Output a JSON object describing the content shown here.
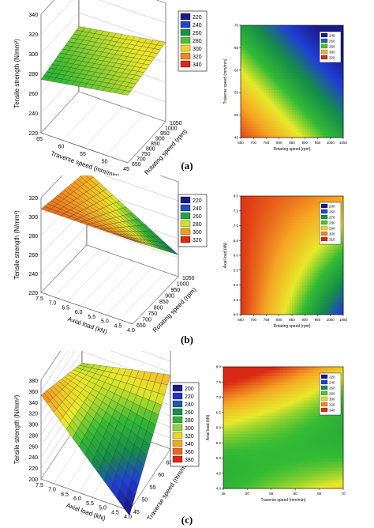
{
  "panels": [
    {
      "label": "(a)",
      "surface": {
        "xlabel": "Traverse speed (mm/min)",
        "ylabel": "Rotating speed (rpm)",
        "zlabel": "Tensile strength (N/mm²)",
        "x_ticks": [
          "65",
          "60",
          "55",
          "50",
          "45"
        ],
        "y_ticks": [
          "650",
          "700",
          "750",
          "800",
          "850",
          "900",
          "950",
          "1000",
          "1050"
        ],
        "z_ticks": [
          "220",
          "240",
          "260",
          "280",
          "300",
          "320",
          "340"
        ],
        "legend": [
          "220",
          "240",
          "260",
          "280",
          "300",
          "320",
          "340"
        ]
      },
      "contour": {
        "xlabel": "Rotating speed (rpm)",
        "ylabel": "Traverse speed (mm/min)",
        "x_ticks": [
          "650",
          "700",
          "750",
          "800",
          "850",
          "900",
          "950",
          "1000",
          "1050"
        ],
        "y_ticks": [
          "45",
          "50",
          "55",
          "60",
          "65",
          "70"
        ],
        "legend": [
          "240",
          "260",
          "280",
          "300",
          "320"
        ]
      }
    },
    {
      "label": "(b)",
      "surface": {
        "xlabel": "Axial load (kN)",
        "ylabel": "Rotating speed (rpm)",
        "zlabel": "Tensile strength (N/mm²)",
        "x_ticks": [
          "7.5",
          "7.0",
          "6.5",
          "6.0",
          "5.5",
          "5.0",
          "4.5",
          "4.0"
        ],
        "y_ticks": [
          "650",
          "700",
          "750",
          "800",
          "850",
          "900",
          "950",
          "1000",
          "1050"
        ],
        "z_ticks": [
          "220",
          "240",
          "260",
          "280",
          "300",
          "320"
        ],
        "legend": [
          "220",
          "240",
          "260",
          "280",
          "300",
          "320"
        ]
      },
      "contour": {
        "xlabel": "Rotating speed (rpm)",
        "ylabel": "Axial load (kN)",
        "x_ticks": [
          "650",
          "700",
          "750",
          "800",
          "850",
          "900",
          "950",
          "1000",
          "1050"
        ],
        "y_ticks": [
          "4.0",
          "4.5",
          "5.0",
          "5.5",
          "6.0",
          "6.5",
          "7.0",
          "7.5",
          "8.0"
        ],
        "legend": [
          "200",
          "260",
          "270",
          "280",
          "290",
          "300",
          "310"
        ]
      }
    },
    {
      "label": "(c)",
      "surface": {
        "xlabel": "Axial load (kN)",
        "ylabel": "Traverse speed (mm/min)",
        "zlabel": "Tensile strength (N/mm²)",
        "x_ticks": [
          "7.5",
          "7.0",
          "6.5",
          "6.0",
          "5.5",
          "5.0",
          "4.5",
          "4.0"
        ],
        "y_ticks": [
          "45",
          "50",
          "55",
          "60",
          "65",
          "70"
        ],
        "z_ticks": [
          "200",
          "220",
          "240",
          "260",
          "280",
          "300",
          "320",
          "340",
          "360",
          "380"
        ],
        "legend": [
          "200",
          "220",
          "240",
          "260",
          "280",
          "300",
          "320",
          "340",
          "360",
          "380"
        ]
      },
      "contour": {
        "xlabel": "Traverse speed (mm/min)",
        "ylabel": "Axial load (kN)",
        "x_ticks": [
          "45",
          "50",
          "55",
          "60",
          "65",
          "70"
        ],
        "y_ticks": [
          "4.0",
          "4.5",
          "5.0",
          "5.5",
          "6.0",
          "6.5",
          "7.0",
          "7.5",
          "8.0"
        ],
        "legend": [
          "220",
          "240",
          "260",
          "280",
          "300",
          "320",
          "340"
        ]
      }
    }
  ],
  "chart_data": [
    {
      "type": "heatmap",
      "panel": "(a) contour",
      "xlabel": "Rotating speed (rpm)",
      "ylabel": "Traverse speed (mm/min)",
      "xlim": [
        650,
        1050
      ],
      "ylim": [
        45,
        70
      ],
      "levels": [
        240,
        260,
        280,
        300,
        320
      ],
      "corner_values": {
        "x650_y45": 340,
        "x1050_y45": 280,
        "x650_y70": 280,
        "x1050_y70": 220
      }
    },
    {
      "type": "heatmap",
      "panel": "(b) contour",
      "xlabel": "Rotating speed (rpm)",
      "ylabel": "Axial load (kN)",
      "xlim": [
        650,
        1050
      ],
      "ylim": [
        4.0,
        8.0
      ],
      "levels": [
        200,
        260,
        270,
        280,
        290,
        300,
        310
      ],
      "corner_values": {
        "x650_y4": 320,
        "x1050_y4": 240,
        "x650_y8": 320,
        "x1050_y8": 310
      }
    },
    {
      "type": "heatmap",
      "panel": "(c) contour",
      "xlabel": "Traverse speed (mm/min)",
      "ylabel": "Axial load (kN)",
      "xlim": [
        45,
        70
      ],
      "ylim": [
        4.0,
        8.0
      ],
      "levels": [
        220,
        240,
        260,
        280,
        300,
        320,
        340
      ],
      "corner_values": {
        "x45_y4": 290,
        "x70_y4": 300,
        "x45_y8": 340,
        "x70_y8": 220
      }
    }
  ],
  "colors": {
    "c200": "#1a1a8a",
    "c220": "#1a1a8a",
    "c240": "#1f3fd6",
    "c260": "#168c4a",
    "c280": "#33bb33",
    "c300": "#e8e82a",
    "c320": "#f5a623",
    "c340": "#e8501e",
    "c360": "#c83c14",
    "c380": "#b82814"
  }
}
